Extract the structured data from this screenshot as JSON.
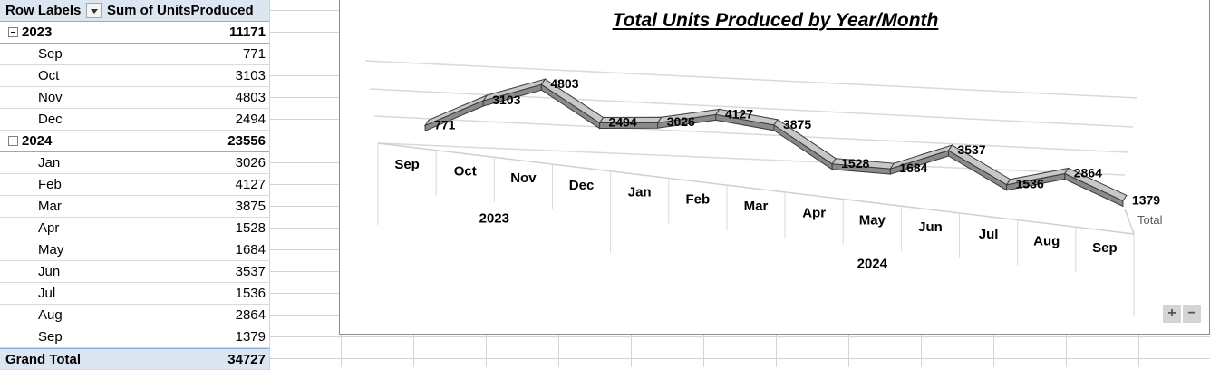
{
  "pivot": {
    "header": {
      "row_labels": "Row Labels",
      "sum_label": "Sum of UnitsProduced"
    },
    "groups": [
      {
        "year": "2023",
        "total": "11171",
        "months": [
          {
            "label": "Sep",
            "value": "771"
          },
          {
            "label": "Oct",
            "value": "3103"
          },
          {
            "label": "Nov",
            "value": "4803"
          },
          {
            "label": "Dec",
            "value": "2494"
          }
        ]
      },
      {
        "year": "2024",
        "total": "23556",
        "months": [
          {
            "label": "Jan",
            "value": "3026"
          },
          {
            "label": "Feb",
            "value": "4127"
          },
          {
            "label": "Mar",
            "value": "3875"
          },
          {
            "label": "Apr",
            "value": "1528"
          },
          {
            "label": "May",
            "value": "1684"
          },
          {
            "label": "Jun",
            "value": "3537"
          },
          {
            "label": "Jul",
            "value": "1536"
          },
          {
            "label": "Aug",
            "value": "2864"
          },
          {
            "label": "Sep",
            "value": "1379"
          }
        ]
      }
    ],
    "grand_total_label": "Grand Total",
    "grand_total_value": "34727"
  },
  "chart_controls": {
    "expand": "+",
    "collapse": "−"
  },
  "chart_data": {
    "type": "line",
    "title": "Total Units Produced by Year/Month",
    "categories": [
      "Sep",
      "Oct",
      "Nov",
      "Dec",
      "Jan",
      "Feb",
      "Mar",
      "Apr",
      "May",
      "Jun",
      "Jul",
      "Aug",
      "Sep"
    ],
    "category_groups": [
      {
        "label": "2023",
        "count": 4
      },
      {
        "label": "2024",
        "count": 9
      }
    ],
    "series": [
      {
        "name": "Total",
        "values": [
          771,
          3103,
          4803,
          2494,
          3026,
          4127,
          3875,
          1528,
          1684,
          3537,
          1536,
          2864,
          1379
        ]
      }
    ],
    "ylim": [
      0,
      5000
    ],
    "data_labels": true,
    "style": "3d-line",
    "grid": true,
    "colors": {
      "ribbon_top": "#c8c8c8",
      "ribbon_side": "#8a8a8a",
      "stroke": "#3a3a3a"
    }
  }
}
